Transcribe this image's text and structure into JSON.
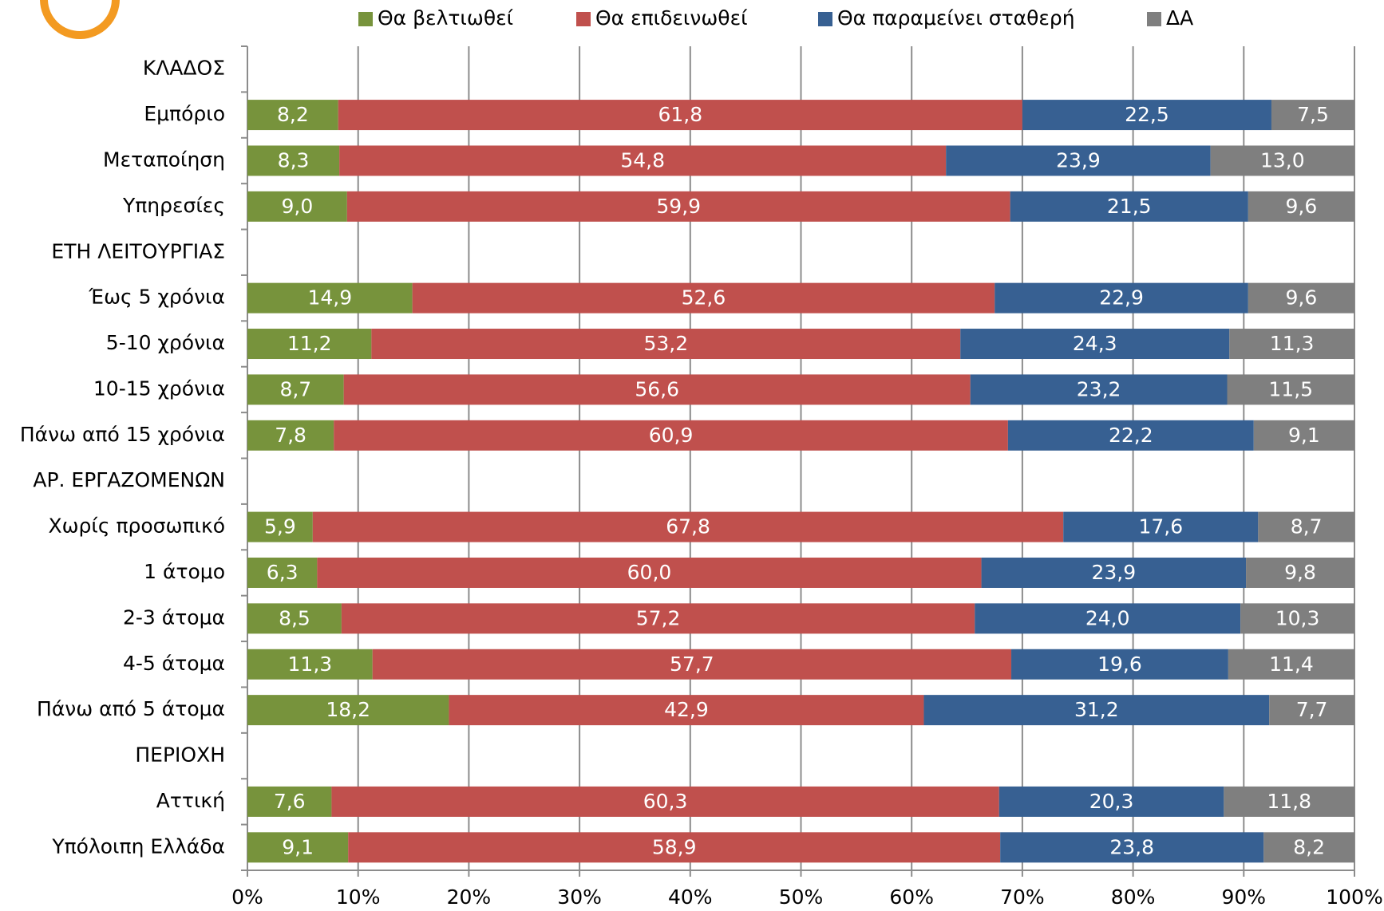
{
  "chart_data": {
    "type": "stacked-bar-horizontal",
    "categories": [
      "ΚΛΑΔΟΣ",
      "Εμπόριο",
      "Μεταποίηση",
      "Υπηρεσίες",
      "ΕΤΗ ΛΕΙΤΟΥΡΓΙΑΣ",
      "Έως 5 χρόνια",
      "5-10 χρόνια",
      "10-15 χρόνια",
      "Πάνω από 15 χρόνια",
      "ΑΡ. ΕΡΓΑΖΟΜΕΝΩΝ",
      "Χωρίς προσωπικό",
      "1 άτομο",
      "2-3 άτομα",
      "4-5 άτομα",
      "Πάνω από 5 άτομα",
      "ΠΕΡΙΟΧΗ",
      "Αττική",
      "Υπόλοιπη Ελλάδα"
    ],
    "series": [
      {
        "name": "Θα βελτιωθεί",
        "color": "#77933c",
        "values": [
          null,
          8.2,
          8.3,
          9.0,
          null,
          14.9,
          11.2,
          8.7,
          7.8,
          null,
          5.9,
          6.3,
          8.5,
          11.3,
          18.2,
          null,
          7.6,
          9.1
        ],
        "value_labels": [
          null,
          "8,2",
          "8,3",
          "9,0",
          null,
          "14,9",
          "11,2",
          "8,7",
          "7,8",
          null,
          "5,9",
          "6,3",
          "8,5",
          "11,3",
          "18,2",
          null,
          "7,6",
          "9,1"
        ]
      },
      {
        "name": "Θα επιδεινωθεί",
        "color": "#c0504d",
        "values": [
          null,
          61.8,
          54.8,
          59.9,
          null,
          52.6,
          53.2,
          56.6,
          60.9,
          null,
          67.8,
          60.0,
          57.2,
          57.7,
          42.9,
          null,
          60.3,
          58.9
        ],
        "value_labels": [
          null,
          "61,8",
          "54,8",
          "59,9",
          null,
          "52,6",
          "53,2",
          "56,6",
          "60,9",
          null,
          "67,8",
          "60,0",
          "57,2",
          "57,7",
          "42,9",
          null,
          "60,3",
          "58,9"
        ]
      },
      {
        "name": "Θα παραμείνει σταθερή",
        "color": "#376092",
        "values": [
          null,
          22.5,
          23.9,
          21.5,
          null,
          22.9,
          24.3,
          23.2,
          22.2,
          null,
          17.6,
          23.9,
          24.0,
          19.6,
          31.2,
          null,
          20.3,
          23.8
        ],
        "value_labels": [
          null,
          "22,5",
          "23,9",
          "21,5",
          null,
          "22,9",
          "24,3",
          "23,2",
          "22,2",
          null,
          "17,6",
          "23,9",
          "24,0",
          "19,6",
          "31,2",
          null,
          "20,3",
          "23,8"
        ]
      },
      {
        "name": "ΔΑ",
        "color": "#7f7f7f",
        "values": [
          null,
          7.5,
          13.0,
          9.6,
          null,
          9.6,
          11.3,
          11.5,
          9.1,
          null,
          8.7,
          9.8,
          10.3,
          11.4,
          7.7,
          null,
          11.8,
          8.2
        ],
        "value_labels": [
          null,
          "7,5",
          "13,0",
          "9,6",
          null,
          "9,6",
          "11,3",
          "11,5",
          "9,1",
          null,
          "8,7",
          "9,8",
          "10,3",
          "11,4",
          "7,7",
          null,
          "11,8",
          "8,2"
        ]
      }
    ],
    "xlim": [
      0,
      100
    ],
    "xticks": [
      {
        "value": 0,
        "label": "0%"
      },
      {
        "value": 10,
        "label": "10%"
      },
      {
        "value": 20,
        "label": "20%"
      },
      {
        "value": 30,
        "label": "30%"
      },
      {
        "value": 40,
        "label": "40%"
      },
      {
        "value": 50,
        "label": "50%"
      },
      {
        "value": 60,
        "label": "60%"
      },
      {
        "value": 70,
        "label": "70%"
      },
      {
        "value": 80,
        "label": "80%"
      },
      {
        "value": 90,
        "label": "90%"
      },
      {
        "value": 100,
        "label": "100%"
      }
    ],
    "grid": true,
    "legend": "top"
  }
}
